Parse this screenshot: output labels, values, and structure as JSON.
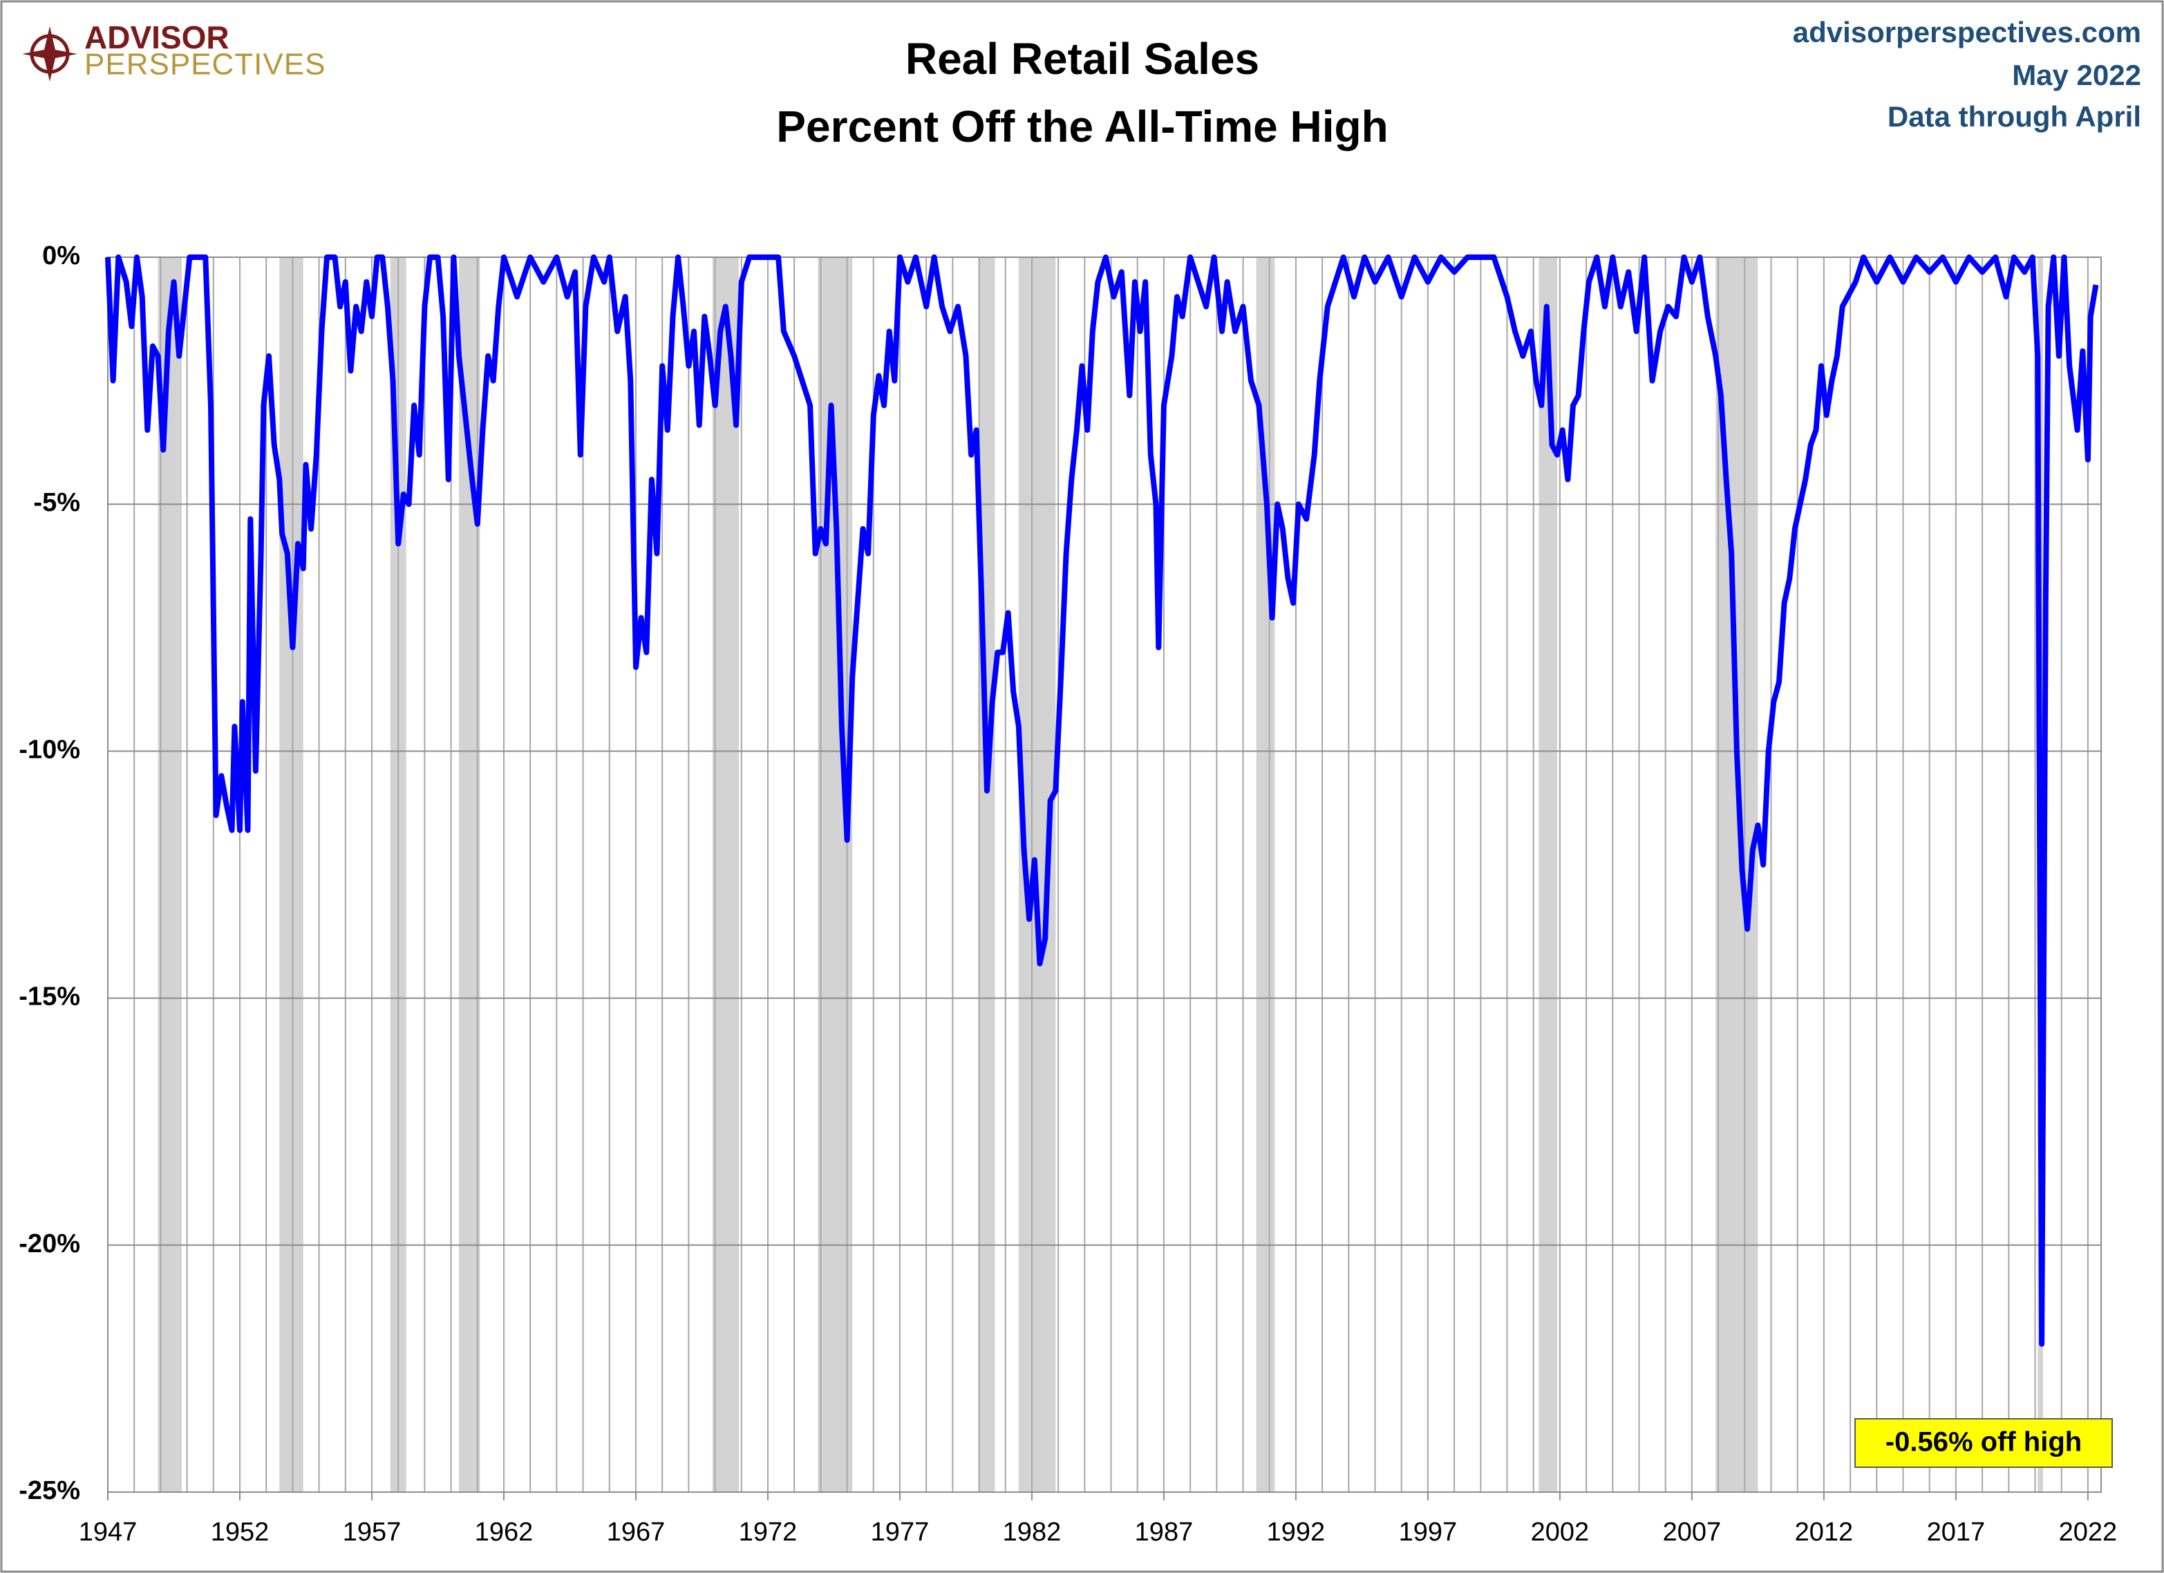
{
  "chart_data": {
    "type": "line",
    "title": "Real Retail Sales",
    "subtitle": "Percent Off the All-Time High",
    "logo": {
      "line1": "ADVISOR",
      "line2": "PERSPECTIVES"
    },
    "source": [
      "advisorperspectives.com",
      "May 2022",
      "Data through April"
    ],
    "annotation": "-0.56% off high",
    "color": "#0000ff",
    "recession_color": "#d3d3d3",
    "grid": true,
    "x_minor_grid": 1,
    "xlim": [
      1947,
      2022.5
    ],
    "xticks": [
      1947,
      1952,
      1957,
      1962,
      1967,
      1972,
      1977,
      1982,
      1987,
      1992,
      1997,
      2002,
      2007,
      2012,
      2017,
      2022
    ],
    "ylim": [
      -25,
      0
    ],
    "yticks": [
      {
        "value": 0,
        "label": "0%"
      },
      {
        "value": -5,
        "label": "-5%"
      },
      {
        "value": -10,
        "label": "-10%"
      },
      {
        "value": -15,
        "label": "-15%"
      },
      {
        "value": -20,
        "label": "-20%"
      },
      {
        "value": -25,
        "label": "-25%"
      }
    ],
    "recessions": [
      [
        1948.9,
        1949.8
      ],
      [
        1953.5,
        1954.4
      ],
      [
        1957.7,
        1958.3
      ],
      [
        1960.3,
        1961.1
      ],
      [
        1969.9,
        1970.9
      ],
      [
        1973.9,
        1975.2
      ],
      [
        1980.0,
        1980.6
      ],
      [
        1981.5,
        1982.9
      ],
      [
        1990.5,
        1991.2
      ],
      [
        2001.2,
        2001.9
      ],
      [
        2007.9,
        2009.5
      ],
      [
        2020.1,
        2020.3
      ]
    ],
    "x": [
      1947.0,
      1947.2,
      1947.4,
      1947.7,
      1947.9,
      1948.1,
      1948.3,
      1948.5,
      1948.7,
      1948.9,
      1949.1,
      1949.3,
      1949.5,
      1949.7,
      1949.9,
      1950.1,
      1950.3,
      1950.7,
      1950.9,
      1951.1,
      1951.3,
      1951.5,
      1951.7,
      1951.8,
      1952.0,
      1952.1,
      1952.3,
      1952.4,
      1952.6,
      1952.8,
      1952.9,
      1953.1,
      1953.3,
      1953.5,
      1953.6,
      1953.8,
      1954.0,
      1954.2,
      1954.4,
      1954.5,
      1954.7,
      1954.9,
      1955.1,
      1955.3,
      1955.6,
      1955.8,
      1956.0,
      1956.2,
      1956.4,
      1956.6,
      1956.8,
      1957.0,
      1957.2,
      1957.4,
      1957.6,
      1957.8,
      1958.0,
      1958.2,
      1958.4,
      1958.6,
      1958.8,
      1959.0,
      1959.2,
      1959.5,
      1959.7,
      1959.9,
      1960.1,
      1960.3,
      1960.6,
      1960.8,
      1961.0,
      1961.2,
      1961.4,
      1961.6,
      1961.8,
      1962.0,
      1962.5,
      1963.0,
      1963.5,
      1964.0,
      1964.4,
      1964.7,
      1964.9,
      1965.1,
      1965.4,
      1965.8,
      1966.0,
      1966.3,
      1966.6,
      1966.8,
      1967.0,
      1967.2,
      1967.4,
      1967.6,
      1967.8,
      1968.0,
      1968.2,
      1968.4,
      1968.6,
      1968.8,
      1969.0,
      1969.2,
      1969.4,
      1969.6,
      1969.8,
      1970.0,
      1970.2,
      1970.4,
      1970.6,
      1970.8,
      1971.0,
      1971.3,
      1972.0,
      1972.4,
      1972.6,
      1973.0,
      1973.3,
      1973.6,
      1973.8,
      1974.0,
      1974.2,
      1974.4,
      1974.6,
      1974.8,
      1975.0,
      1975.2,
      1975.4,
      1975.6,
      1975.8,
      1976.0,
      1976.2,
      1976.4,
      1976.6,
      1976.8,
      1977.0,
      1977.3,
      1977.6,
      1978.0,
      1978.3,
      1978.6,
      1978.9,
      1979.2,
      1979.5,
      1979.7,
      1979.9,
      1980.1,
      1980.3,
      1980.5,
      1980.7,
      1980.9,
      1981.1,
      1981.3,
      1981.5,
      1981.7,
      1981.9,
      1982.1,
      1982.3,
      1982.5,
      1982.7,
      1982.9,
      1983.1,
      1983.3,
      1983.5,
      1983.7,
      1983.9,
      1984.1,
      1984.3,
      1984.5,
      1984.8,
      1985.1,
      1985.4,
      1985.7,
      1985.9,
      1986.1,
      1986.3,
      1986.5,
      1986.7,
      1986.8,
      1987.0,
      1987.3,
      1987.5,
      1987.7,
      1988.0,
      1988.3,
      1988.6,
      1988.9,
      1989.2,
      1989.4,
      1989.7,
      1990.0,
      1990.3,
      1990.6,
      1990.9,
      1991.1,
      1991.3,
      1991.5,
      1991.7,
      1991.9,
      1992.1,
      1992.4,
      1992.7,
      1992.9,
      1993.2,
      1993.5,
      1993.8,
      1994.2,
      1994.6,
      1995.0,
      1995.5,
      1996.0,
      1996.5,
      1997.0,
      1997.5,
      1998.0,
      1998.5,
      1999.0,
      1999.5,
      2000.0,
      2000.3,
      2000.6,
      2000.9,
      2001.1,
      2001.3,
      2001.5,
      2001.7,
      2001.9,
      2002.1,
      2002.3,
      2002.5,
      2002.7,
      2002.9,
      2003.1,
      2003.4,
      2003.7,
      2004.0,
      2004.3,
      2004.6,
      2004.9,
      2005.2,
      2005.5,
      2005.8,
      2006.1,
      2006.4,
      2006.7,
      2007.0,
      2007.3,
      2007.6,
      2007.9,
      2008.1,
      2008.3,
      2008.5,
      2008.7,
      2008.9,
      2009.1,
      2009.3,
      2009.5,
      2009.7,
      2009.9,
      2010.1,
      2010.3,
      2010.5,
      2010.7,
      2010.9,
      2011.1,
      2011.3,
      2011.5,
      2011.7,
      2011.9,
      2012.1,
      2012.3,
      2012.5,
      2012.7,
      2012.9,
      2013.2,
      2013.5,
      2014.0,
      2014.5,
      2015.0,
      2015.5,
      2016.0,
      2016.5,
      2017.0,
      2017.5,
      2018.0,
      2018.5,
      2018.9,
      2019.2,
      2019.6,
      2019.9,
      2020.1,
      2020.25,
      2020.4,
      2020.5,
      2020.7,
      2020.9,
      2021.1,
      2021.3,
      2021.6,
      2021.8,
      2022.0,
      2022.1,
      2022.3
    ],
    "values": [
      0,
      -2.5,
      0,
      -0.5,
      -1.4,
      0,
      -0.8,
      -3.5,
      -1.8,
      -2,
      -3.9,
      -1.5,
      -0.5,
      -2,
      -1,
      0,
      0,
      0,
      -3,
      -11.3,
      -10.5,
      -11.1,
      -11.6,
      -9.5,
      -11.6,
      -9,
      -11.6,
      -5.3,
      -10.4,
      -6,
      -3,
      -2,
      -3.8,
      -4.5,
      -5.6,
      -6,
      -7.9,
      -5.8,
      -6.3,
      -4.2,
      -5.5,
      -4,
      -1.5,
      0,
      0,
      -1,
      -0.5,
      -2.3,
      -1,
      -1.5,
      -0.5,
      -1.2,
      0,
      0,
      -1,
      -2.5,
      -5.8,
      -4.8,
      -5,
      -3,
      -4,
      -1,
      0,
      0,
      -1.2,
      -4.5,
      0,
      -2,
      -3.5,
      -4.5,
      -5.4,
      -3.5,
      -2,
      -2.5,
      -1,
      0,
      -0.8,
      0,
      -0.5,
      0,
      -0.8,
      -0.3,
      -4,
      -1,
      0,
      -0.5,
      0,
      -1.5,
      -0.8,
      -2.5,
      -8.3,
      -7.3,
      -8,
      -4.5,
      -6,
      -2.2,
      -3.5,
      -1.2,
      0,
      -1,
      -2.2,
      -1.5,
      -3.4,
      -1.2,
      -2,
      -3,
      -1.5,
      -1,
      -2,
      -3.4,
      -0.5,
      0,
      0,
      0,
      -1.5,
      -2,
      -2.5,
      -3,
      -6,
      -5.5,
      -5.8,
      -3,
      -5.5,
      -9.5,
      -11.8,
      -8.5,
      -7,
      -5.5,
      -6,
      -3.2,
      -2.4,
      -3,
      -1.5,
      -2.5,
      0,
      -0.5,
      0,
      -1,
      0,
      -1,
      -1.5,
      -1,
      -2,
      -4,
      -3.5,
      -7,
      -10.8,
      -9,
      -8,
      -8,
      -7.2,
      -8.8,
      -9.5,
      -12,
      -13.4,
      -12.2,
      -14.3,
      -13.8,
      -11,
      -10.8,
      -8.5,
      -6,
      -4.5,
      -3.5,
      -2.2,
      -3.5,
      -1.5,
      -0.5,
      0,
      -0.8,
      -0.3,
      -2.8,
      -0.5,
      -1.5,
      -0.5,
      -4,
      -5,
      -7.9,
      -3,
      -2,
      -0.8,
      -1.2,
      0,
      -0.5,
      -1,
      0,
      -1.5,
      -0.5,
      -1.5,
      -1,
      -2.5,
      -3,
      -5,
      -7.3,
      -5,
      -5.5,
      -6.5,
      -7,
      -5,
      -5.3,
      -4,
      -2.5,
      -1,
      -0.5,
      0,
      -0.8,
      0,
      -0.5,
      0,
      -0.8,
      0,
      -0.5,
      0,
      -0.3,
      0,
      0,
      0,
      -0.8,
      -1.5,
      -2,
      -1.5,
      -2.5,
      -3,
      -1,
      -3.8,
      -4,
      -3.5,
      -4.5,
      -3,
      -2.8,
      -1.5,
      -0.5,
      0,
      -1,
      0,
      -1,
      -0.3,
      -1.5,
      0,
      -2.5,
      -1.5,
      -1,
      -1.2,
      0,
      -0.5,
      0,
      -1.2,
      -2,
      -2.8,
      -4.5,
      -6,
      -10,
      -12.4,
      -13.6,
      -12,
      -11.5,
      -12.3,
      -10,
      -9,
      -8.6,
      -7,
      -6.5,
      -5.5,
      -5,
      -4.5,
      -3.8,
      -3.5,
      -2.2,
      -3.2,
      -2.5,
      -2,
      -1,
      -0.8,
      -0.5,
      0,
      -0.5,
      0,
      -0.5,
      0,
      -0.3,
      0,
      -0.5,
      0,
      -0.3,
      0,
      -0.8,
      0,
      -0.3,
      0,
      -2,
      -22,
      -7,
      -1,
      0,
      -2,
      0,
      -2.2,
      -3.5,
      -1.9,
      -4.1,
      -1.2,
      -0.56
    ]
  }
}
